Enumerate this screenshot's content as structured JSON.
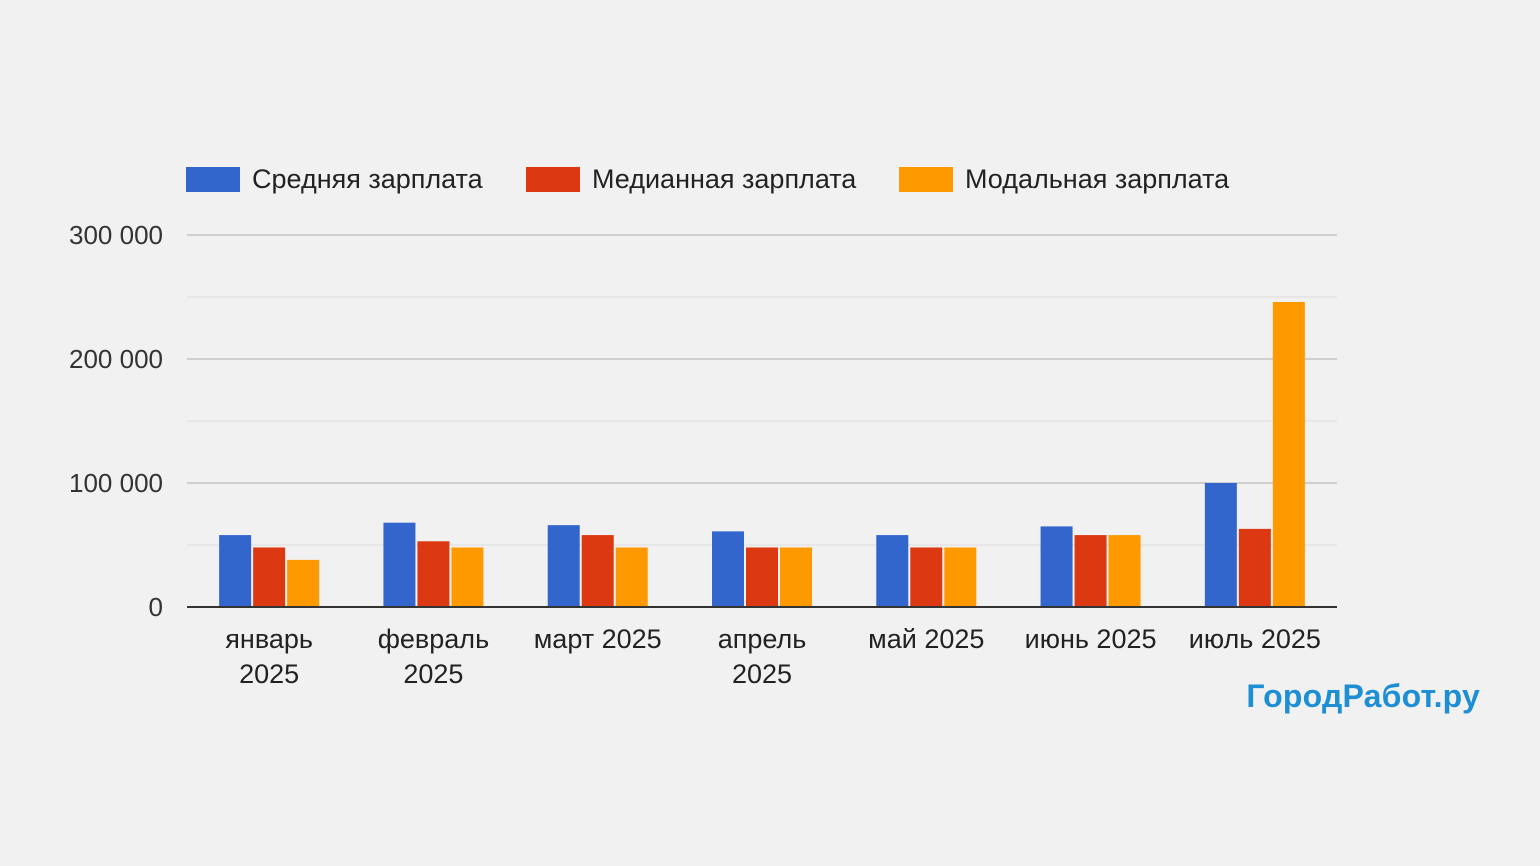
{
  "brand": "ГородРабот.ру",
  "chart_data": {
    "type": "bar",
    "categories": [
      [
        "январь",
        "2025"
      ],
      [
        "февраль",
        "2025"
      ],
      [
        "март 2025"
      ],
      [
        "апрель",
        "2025"
      ],
      [
        "май 2025"
      ],
      [
        "июнь 2025"
      ],
      [
        "июль 2025"
      ]
    ],
    "series": [
      {
        "name": "Средняя зарплата",
        "color": "#3366cc",
        "values": [
          58000,
          68000,
          66000,
          61000,
          58000,
          65000,
          100000
        ]
      },
      {
        "name": "Медианная зарплата",
        "color": "#dc3912",
        "values": [
          48000,
          53000,
          58000,
          48000,
          48000,
          58000,
          63000
        ]
      },
      {
        "name": "Модальная зарплата",
        "color": "#ff9900",
        "values": [
          38000,
          48000,
          48000,
          48000,
          48000,
          58000,
          246000
        ]
      }
    ],
    "y_ticks": [
      "0",
      "100 000",
      "200 000",
      "300 000"
    ],
    "y_tick_values": [
      0,
      100000,
      200000,
      300000
    ],
    "ylim": [
      0,
      300000
    ],
    "minor_gridlines": [
      50000,
      150000,
      250000
    ],
    "grid": true,
    "legend_position": "top"
  }
}
